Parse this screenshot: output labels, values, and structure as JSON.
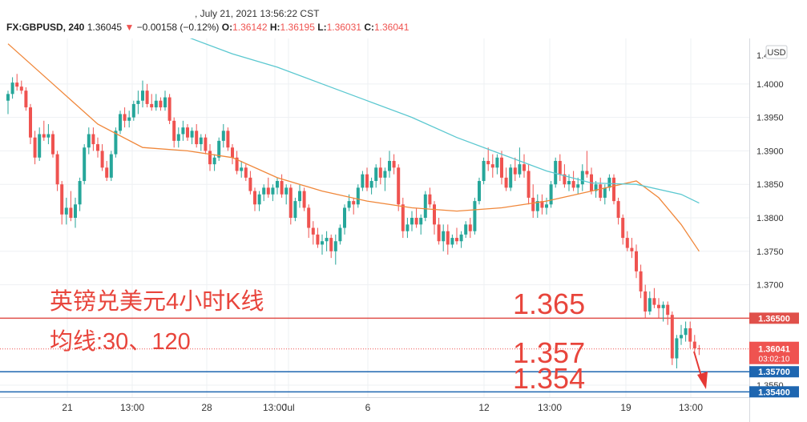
{
  "header": {
    "datetime": ", July 21, 2021 13:56:22 CST",
    "symbol": "FX:GBPUSD, 240",
    "last": "1.36045",
    "change_arrow": "▼",
    "change": "−0.00158 (−0.12%)",
    "o_label": "O:",
    "o_value": "1.36142",
    "h_label": "H:",
    "h_value": "1.36195",
    "l_label": "L:",
    "l_value": "1.36031",
    "c_label": "C:",
    "c_value": "1.36041"
  },
  "currency_badge": "USD",
  "colors": {
    "up": "#26a69a",
    "down": "#ef5350",
    "ma30": "#f0873a",
    "ma120": "#5bc8d0",
    "blue_line": "#1e66b0",
    "red_line": "#e0504a",
    "annot": "#e8453c"
  },
  "annotations": {
    "line1": "英镑兑美元4小时K线",
    "line2": "均线:30、120",
    "level_1365": "1.365",
    "level_1357": "1.357",
    "level_1354": "1.354"
  },
  "chart_data": {
    "type": "candlestick",
    "ylim": [
      1.3532,
      1.4068
    ],
    "y_ticks": [
      "1.4000",
      "1.3950",
      "1.3900",
      "1.3850",
      "1.3800",
      "1.3750",
      "1.3700",
      "1.3550"
    ],
    "y_top_partial": "1.4",
    "x_ticks": [
      "21",
      "13:00",
      "28",
      "13:00",
      "Jul",
      "6",
      "12",
      "13:00",
      "19",
      "13:00"
    ],
    "horizontal_lines": [
      {
        "price": 1.365,
        "label": "1.36500",
        "color": "#e0504a"
      },
      {
        "price": 1.357,
        "label": "1.35700",
        "color": "#1e66b0"
      },
      {
        "price": 1.354,
        "label": "1.35400",
        "color": "#1e66b0"
      }
    ],
    "current_price": {
      "price": 1.36041,
      "label": "1.36041",
      "countdown": "03:02:10"
    },
    "n_bars": 155,
    "candles": [
      [
        1.3975,
        1.399,
        1.3955,
        1.3985
      ],
      [
        1.3985,
        1.401,
        1.3978,
        1.4002
      ],
      [
        1.4002,
        1.4015,
        1.399,
        1.3996
      ],
      [
        1.3996,
        1.4005,
        1.3985,
        1.399
      ],
      [
        1.399,
        1.3995,
        1.396,
        1.3965
      ],
      [
        1.3965,
        1.397,
        1.391,
        1.392
      ],
      [
        1.392,
        1.393,
        1.388,
        1.389
      ],
      [
        1.389,
        1.3935,
        1.3885,
        1.3925
      ],
      [
        1.3925,
        1.3945,
        1.3915,
        1.392
      ],
      [
        1.392,
        1.394,
        1.391,
        1.3925
      ],
      [
        1.3925,
        1.393,
        1.389,
        1.3895
      ],
      [
        1.3895,
        1.39,
        1.384,
        1.385
      ],
      [
        1.385,
        1.3855,
        1.379,
        1.3805
      ],
      [
        1.3805,
        1.383,
        1.379,
        1.3815
      ],
      [
        1.3815,
        1.384,
        1.3795,
        1.38
      ],
      [
        1.38,
        1.383,
        1.3785,
        1.382
      ],
      [
        1.382,
        1.386,
        1.381,
        1.3855
      ],
      [
        1.3855,
        1.391,
        1.385,
        1.3905
      ],
      [
        1.3905,
        1.3935,
        1.3895,
        1.3925
      ],
      [
        1.3925,
        1.3935,
        1.39,
        1.391
      ],
      [
        1.391,
        1.392,
        1.389,
        1.39
      ],
      [
        1.39,
        1.391,
        1.387,
        1.3875
      ],
      [
        1.3875,
        1.3885,
        1.3855,
        1.386
      ],
      [
        1.386,
        1.39,
        1.3855,
        1.3895
      ],
      [
        1.3895,
        1.3935,
        1.389,
        1.393
      ],
      [
        1.393,
        1.396,
        1.3925,
        1.3955
      ],
      [
        1.3955,
        1.3965,
        1.3935,
        1.3945
      ],
      [
        1.3945,
        1.396,
        1.3935,
        1.395
      ],
      [
        1.395,
        1.3975,
        1.3945,
        1.397
      ],
      [
        1.397,
        1.399,
        1.3955,
        1.3975
      ],
      [
        1.3975,
        1.4005,
        1.3965,
        1.399
      ],
      [
        1.399,
        1.4,
        1.3965,
        1.397
      ],
      [
        1.397,
        1.3985,
        1.396,
        1.3965
      ],
      [
        1.3965,
        1.3985,
        1.396,
        1.3975
      ],
      [
        1.3975,
        1.398,
        1.396,
        1.3965
      ],
      [
        1.3965,
        1.399,
        1.396,
        1.398
      ],
      [
        1.398,
        1.3985,
        1.394,
        1.3945
      ],
      [
        1.3945,
        1.395,
        1.3905,
        1.3915
      ],
      [
        1.3915,
        1.3935,
        1.3905,
        1.3925
      ],
      [
        1.3925,
        1.3945,
        1.3915,
        1.3935
      ],
      [
        1.3935,
        1.394,
        1.3915,
        1.392
      ],
      [
        1.392,
        1.3935,
        1.391,
        1.393
      ],
      [
        1.393,
        1.394,
        1.3905,
        1.391
      ],
      [
        1.391,
        1.3925,
        1.39,
        1.392
      ],
      [
        1.392,
        1.3925,
        1.3895,
        1.39
      ],
      [
        1.39,
        1.391,
        1.387,
        1.388
      ],
      [
        1.388,
        1.3895,
        1.387,
        1.389
      ],
      [
        1.389,
        1.392,
        1.3885,
        1.3915
      ],
      [
        1.3915,
        1.394,
        1.3905,
        1.393
      ],
      [
        1.393,
        1.3935,
        1.39,
        1.3905
      ],
      [
        1.3905,
        1.391,
        1.388,
        1.389
      ],
      [
        1.389,
        1.39,
        1.3865,
        1.387
      ],
      [
        1.387,
        1.3885,
        1.386,
        1.3875
      ],
      [
        1.3875,
        1.388,
        1.3855,
        1.386
      ],
      [
        1.386,
        1.387,
        1.3835,
        1.384
      ],
      [
        1.384,
        1.3845,
        1.381,
        1.382
      ],
      [
        1.382,
        1.384,
        1.381,
        1.3835
      ],
      [
        1.3835,
        1.385,
        1.3825,
        1.3845
      ],
      [
        1.3845,
        1.386,
        1.383,
        1.3835
      ],
      [
        1.3835,
        1.385,
        1.3825,
        1.3845
      ],
      [
        1.3845,
        1.386,
        1.3835,
        1.3855
      ],
      [
        1.3855,
        1.3865,
        1.383,
        1.3835
      ],
      [
        1.3835,
        1.385,
        1.382,
        1.3845
      ],
      [
        1.3845,
        1.385,
        1.379,
        1.38
      ],
      [
        1.38,
        1.383,
        1.3795,
        1.3825
      ],
      [
        1.3825,
        1.385,
        1.3815,
        1.384
      ],
      [
        1.384,
        1.3845,
        1.381,
        1.3815
      ],
      [
        1.3815,
        1.382,
        1.377,
        1.3785
      ],
      [
        1.3785,
        1.3795,
        1.376,
        1.3775
      ],
      [
        1.3775,
        1.3785,
        1.3755,
        1.376
      ],
      [
        1.376,
        1.3775,
        1.3745,
        1.3765
      ],
      [
        1.3765,
        1.378,
        1.375,
        1.377
      ],
      [
        1.377,
        1.3775,
        1.374,
        1.375
      ],
      [
        1.375,
        1.3775,
        1.373,
        1.3765
      ],
      [
        1.3765,
        1.379,
        1.376,
        1.3785
      ],
      [
        1.3785,
        1.382,
        1.3775,
        1.3815
      ],
      [
        1.3815,
        1.3835,
        1.381,
        1.3825
      ],
      [
        1.3825,
        1.383,
        1.3805,
        1.382
      ],
      [
        1.382,
        1.385,
        1.3815,
        1.3845
      ],
      [
        1.3845,
        1.387,
        1.384,
        1.3865
      ],
      [
        1.3865,
        1.3875,
        1.384,
        1.3845
      ],
      [
        1.3845,
        1.386,
        1.3835,
        1.3855
      ],
      [
        1.3855,
        1.388,
        1.3845,
        1.3875
      ],
      [
        1.3875,
        1.389,
        1.385,
        1.386
      ],
      [
        1.386,
        1.3875,
        1.384,
        1.387
      ],
      [
        1.387,
        1.39,
        1.386,
        1.3885
      ],
      [
        1.3885,
        1.3895,
        1.3865,
        1.3875
      ],
      [
        1.3875,
        1.388,
        1.381,
        1.382
      ],
      [
        1.382,
        1.383,
        1.377,
        1.378
      ],
      [
        1.378,
        1.38,
        1.377,
        1.379
      ],
      [
        1.379,
        1.381,
        1.378,
        1.38
      ],
      [
        1.38,
        1.3815,
        1.3785,
        1.379
      ],
      [
        1.379,
        1.3805,
        1.3775,
        1.38
      ],
      [
        1.38,
        1.384,
        1.3795,
        1.3835
      ],
      [
        1.3835,
        1.3845,
        1.3815,
        1.382
      ],
      [
        1.382,
        1.3825,
        1.3775,
        1.379
      ],
      [
        1.379,
        1.38,
        1.376,
        1.3765
      ],
      [
        1.3765,
        1.379,
        1.375,
        1.378
      ],
      [
        1.378,
        1.379,
        1.3745,
        1.376
      ],
      [
        1.376,
        1.3775,
        1.3755,
        1.377
      ],
      [
        1.377,
        1.3785,
        1.376,
        1.3765
      ],
      [
        1.3765,
        1.378,
        1.3755,
        1.3775
      ],
      [
        1.3775,
        1.3795,
        1.377,
        1.379
      ],
      [
        1.379,
        1.38,
        1.377,
        1.378
      ],
      [
        1.378,
        1.383,
        1.3775,
        1.3825
      ],
      [
        1.3825,
        1.386,
        1.382,
        1.3855
      ],
      [
        1.3855,
        1.389,
        1.385,
        1.3885
      ],
      [
        1.3885,
        1.3905,
        1.387,
        1.388
      ],
      [
        1.388,
        1.3895,
        1.386,
        1.3875
      ],
      [
        1.3875,
        1.3895,
        1.3865,
        1.389
      ],
      [
        1.389,
        1.39,
        1.385,
        1.386
      ],
      [
        1.386,
        1.3875,
        1.384,
        1.3845
      ],
      [
        1.3845,
        1.388,
        1.384,
        1.3875
      ],
      [
        1.3875,
        1.389,
        1.3855,
        1.3865
      ],
      [
        1.3865,
        1.3905,
        1.386,
        1.388
      ],
      [
        1.388,
        1.3895,
        1.386,
        1.387
      ],
      [
        1.387,
        1.388,
        1.382,
        1.383
      ],
      [
        1.383,
        1.385,
        1.38,
        1.381
      ],
      [
        1.381,
        1.3835,
        1.38,
        1.3825
      ],
      [
        1.3825,
        1.3835,
        1.3805,
        1.3815
      ],
      [
        1.3815,
        1.383,
        1.3805,
        1.382
      ],
      [
        1.382,
        1.3855,
        1.3815,
        1.385
      ],
      [
        1.385,
        1.389,
        1.3845,
        1.3885
      ],
      [
        1.3885,
        1.3895,
        1.3855,
        1.3865
      ],
      [
        1.3865,
        1.388,
        1.3845,
        1.385
      ],
      [
        1.385,
        1.3865,
        1.384,
        1.3855
      ],
      [
        1.3855,
        1.387,
        1.384,
        1.3845
      ],
      [
        1.3845,
        1.386,
        1.3835,
        1.385
      ],
      [
        1.385,
        1.388,
        1.384,
        1.387
      ],
      [
        1.387,
        1.39,
        1.386,
        1.3865
      ],
      [
        1.3865,
        1.3875,
        1.3835,
        1.384
      ],
      [
        1.384,
        1.3855,
        1.383,
        1.385
      ],
      [
        1.385,
        1.386,
        1.3825,
        1.383
      ],
      [
        1.383,
        1.385,
        1.382,
        1.3845
      ],
      [
        1.3845,
        1.3865,
        1.384,
        1.386
      ],
      [
        1.386,
        1.3865,
        1.382,
        1.3825
      ],
      [
        1.3825,
        1.383,
        1.379,
        1.38
      ],
      [
        1.38,
        1.3805,
        1.376,
        1.377
      ],
      [
        1.377,
        1.378,
        1.375,
        1.3755
      ],
      [
        1.3755,
        1.377,
        1.374,
        1.375
      ],
      [
        1.375,
        1.376,
        1.371,
        1.372
      ],
      [
        1.372,
        1.373,
        1.368,
        1.369
      ],
      [
        1.369,
        1.37,
        1.365,
        1.366
      ],
      [
        1.366,
        1.369,
        1.3655,
        1.368
      ],
      [
        1.368,
        1.3695,
        1.3665,
        1.367
      ],
      [
        1.367,
        1.368,
        1.365,
        1.3665
      ],
      [
        1.3665,
        1.3675,
        1.3645,
        1.367
      ],
      [
        1.367,
        1.3675,
        1.364,
        1.3655
      ],
      [
        1.3655,
        1.366,
        1.358,
        1.359
      ],
      [
        1.359,
        1.3625,
        1.3575,
        1.362
      ],
      [
        1.362,
        1.364,
        1.361,
        1.3625
      ],
      [
        1.3625,
        1.3645,
        1.3615,
        1.3635
      ],
      [
        1.3635,
        1.3645,
        1.3605,
        1.3615
      ],
      [
        1.3615,
        1.3625,
        1.36,
        1.3605
      ],
      [
        1.3605,
        1.361,
        1.3595,
        1.3604
      ]
    ],
    "series": [
      {
        "name": "MA30",
        "x": [
          0,
          10,
          20,
          30,
          40,
          50,
          60,
          70,
          80,
          90,
          100,
          110,
          120,
          130,
          140,
          145,
          150,
          154
        ],
        "y": [
          1.406,
          1.4,
          1.394,
          1.3905,
          1.39,
          1.389,
          1.386,
          1.384,
          1.3825,
          1.3815,
          1.381,
          1.3815,
          1.3825,
          1.384,
          1.3855,
          1.383,
          1.379,
          1.375
        ]
      },
      {
        "name": "MA120",
        "x": [
          40,
          50,
          60,
          70,
          80,
          90,
          100,
          110,
          120,
          130,
          140,
          150,
          154
        ],
        "y": [
          1.407,
          1.4045,
          1.4025,
          1.4,
          1.3975,
          1.395,
          1.392,
          1.3895,
          1.387,
          1.3852,
          1.385,
          1.3835,
          1.3822
        ]
      }
    ]
  }
}
